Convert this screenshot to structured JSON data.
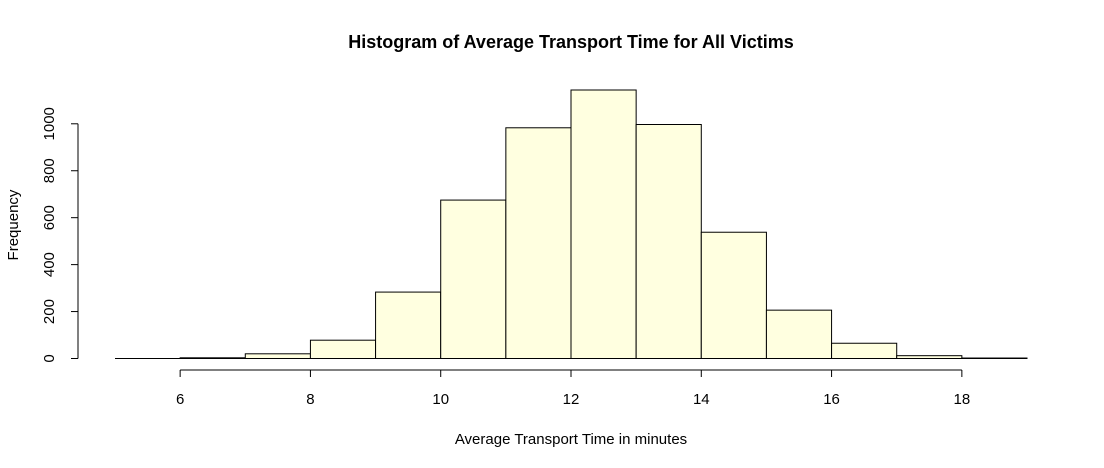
{
  "chart_data": {
    "type": "bar",
    "title": "Histogram of Average Transport Time for All Victims",
    "xlabel": "Average Transport Time in minutes",
    "ylabel": "Frequency",
    "bin_edges": [
      5,
      6,
      7,
      8,
      9,
      10,
      11,
      12,
      13,
      14,
      15,
      16,
      17,
      18,
      19
    ],
    "values": [
      0,
      3,
      20,
      78,
      283,
      675,
      983,
      1144,
      997,
      538,
      206,
      65,
      12,
      2
    ],
    "x_ticks": [
      6,
      8,
      10,
      12,
      14,
      16,
      18
    ],
    "x_tick_labels": [
      "6",
      "8",
      "10",
      "12",
      "14",
      "16",
      "18"
    ],
    "y_ticks": [
      0,
      200,
      400,
      600,
      800,
      1000
    ],
    "y_tick_labels": [
      "0",
      "200",
      "400",
      "600",
      "800",
      "1000"
    ],
    "xlim": [
      5,
      19
    ],
    "ylim": [
      0,
      1144
    ],
    "grid": false,
    "legend": "none",
    "bar_fill": "#ffffe0",
    "bar_stroke": "#000000"
  }
}
